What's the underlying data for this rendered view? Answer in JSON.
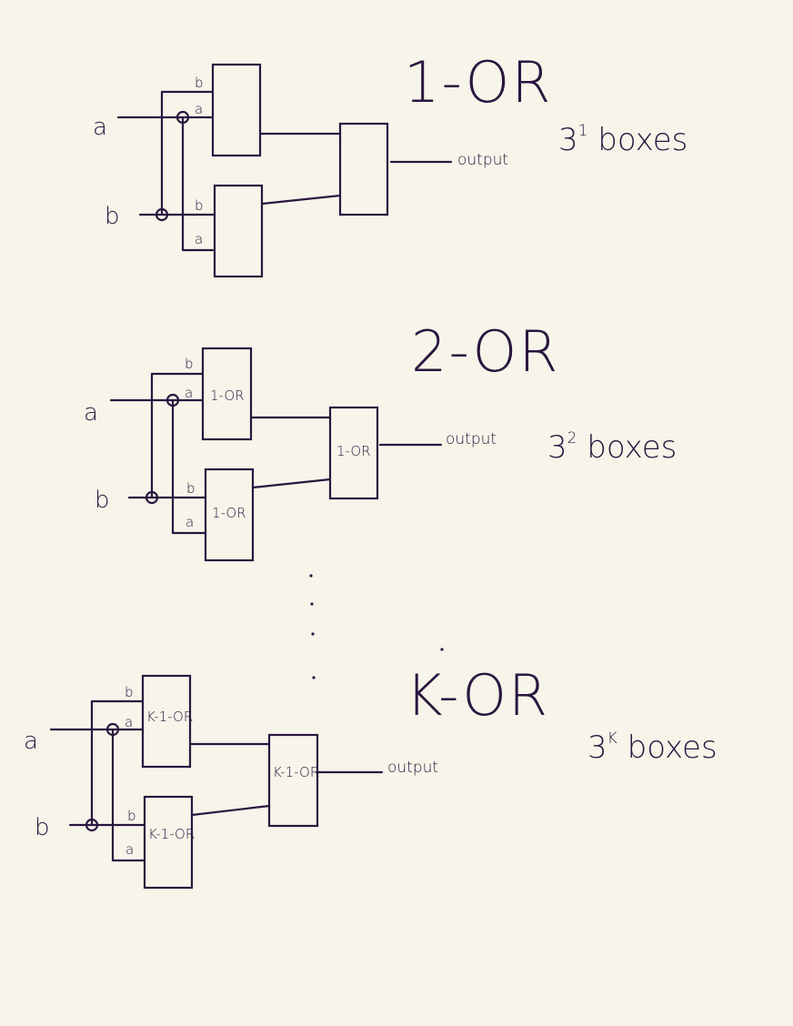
{
  "diagrams": [
    {
      "title": "1-OR",
      "input_a": "a",
      "input_b": "b",
      "pin_b": "b",
      "pin_a": "a",
      "top_box": "",
      "bottom_box": "",
      "final_box": "",
      "output": "output",
      "count_base": "3",
      "count_exp": "1",
      "count_word": "boxes"
    },
    {
      "title": "2-OR",
      "input_a": "a",
      "input_b": "b",
      "pin_b": "b",
      "pin_a": "a",
      "top_box": "1-OR",
      "bottom_box": "1-OR",
      "final_box": "1-OR",
      "output": "output",
      "count_base": "3",
      "count_exp": "2",
      "count_word": "boxes"
    },
    {
      "title": "K-OR",
      "input_a": "a",
      "input_b": "b",
      "pin_b": "b",
      "pin_a": "a",
      "top_box": "K-1-OR",
      "bottom_box": "K-1-OR",
      "final_box": "K-1-OR",
      "output": "output",
      "count_base": "3",
      "count_exp": "K",
      "count_word": "boxes"
    }
  ]
}
